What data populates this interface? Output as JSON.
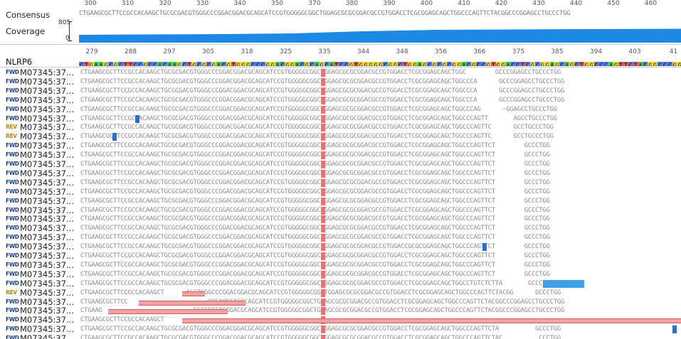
{
  "labels": {
    "consensus": "Consensus",
    "coverage": "Coverage",
    "coverage_max": "805",
    "coverage_min": "0",
    "reference": "NLRP6"
  },
  "colors": {
    "coverage": "#1e88e5",
    "A": "#4cd34c",
    "C": "#4f7de6",
    "G": "#f2d636",
    "T": "#e05a5a",
    "gap": "#f2a0a0",
    "variant": "#2a6fd6"
  },
  "ruler": [
    "300",
    "310",
    "320",
    "330",
    "340",
    "350",
    "370",
    "380",
    "390",
    "400",
    "410",
    "420",
    "430",
    "440",
    "450",
    "460",
    "470"
  ],
  "ref_ruler": [
    "279",
    "288",
    "297",
    "305",
    "318",
    "325",
    "335",
    "344",
    "348",
    "356",
    "366",
    "375",
    "385",
    "394",
    "403",
    "41"
  ],
  "consensus_seq": "CTGAAGCGCTTCCGCCACAAGCTGCGCGACGTGGGCCCGGACGGACGCAGCATCCGTGGGGGCGGCTGGAGCGCGCGGACGCCGTGGACCTCGCGGAGCAGCTGGCCCAGTTCTACGGCCCGGAGCCTGCCCTGG",
  "reference_seq": "CTGAAGCGCTTCCGCCACAAGCTGCGCGACGTGGGCCCGGACGGACGCAGCATCCGTGGGGGCGGCTGGAGCGCGCGGACGCCGTGGACCTCGCGGAGCAGCTGGCCCAGTTCTACGGCCCGGAGCCTGCCCTGG",
  "reads": [
    {
      "dir": "FWD",
      "name": "M07345:37...",
      "seq": "CTGAAGCGCTTCCGCCACAAGCTGCGCGACGTGGGCCCGGACGGACGCAGCATCCGTGGGGGCGGCTGGAGCGCGCGGACGCCGTGGACCTCGCGGAGCAGCTGGC        GCCCGGAGCCTGCCCTGG"
    },
    {
      "dir": "FWD",
      "name": "M07345:37...",
      "seq": "CTGAAGCGCTTCCGCCACAAGCTGCGCGACGTGGGCCCGGACGGACGCAGCATCCGTGGGGGCGGCTGGAGCGCGCGGACGCCGTGGACCTCGCGGAGCAGCTGGCCCA      GCCCGGAGCCTGCCCTGG"
    },
    {
      "dir": "FWD",
      "name": "M07345:37...",
      "seq": "CTGAAGCGCTTCCGCCACAAGCTGCGCGACGTGGGCCCGGACGGACGCAGCATCCGTGGGGGCGGCTGGAGCGCGCGGACGCCGTGGACCTCGCGGAGCAGCTGGCCCA      GCCCGGAGCCTGCCCTGG"
    },
    {
      "dir": "FWD",
      "name": "M07345:37...",
      "seq": "CTGAAGCGCTTCCGCCACAAGCTGCGCGACGTGGGCCCGGACGGACGCAGCATCCGTGGGGGCGGCTGGAGCGCGCGGACGCCGTGGACCTCGCGGAGCAGCTGGCCCA      GCCCGGAGCCTGCCCTGG"
    },
    {
      "dir": "FWD",
      "name": "M07345:37...",
      "seq": "CTGAAGCGCTTCCGCCACAAGCTGCGCGACGTGGGCCCGGACGGACGCAGCATCCGTGGGGGCGGCTGGAGCGCGCGGACGCCGTGGACCTCGCGGAGCAGCTGGCCCAG      ~GGAGCCTGCCCTGG"
    },
    {
      "dir": "FWD",
      "name": "M07345:37...",
      "seq": "CTGAAGCGCTTCCGCCACAAGCTGCGCGACGTGGGCCCGGACGGACGCAGCATCCGTGGGGGCGGCTGGAGCGCGCGGACGCCGTGGACCTCGCGGAGCAGCTGGCCCAGTT       AGCCTGCCCTGG"
    },
    {
      "dir": "REV",
      "name": "M07345:37...",
      "seq": "CTGAAGCGCTTCCGCCACAAGCTGCGCGACGTGGGCCCGGACGGACGCAGCATCCGTGGGGGCGGCTGGAGCGCGCGGACGCCGTGGACCTCGCGGAGCAGCTGGCCCAGTTC      GCCTGCCCTGG"
    },
    {
      "dir": "REV",
      "name": "M07345:37...",
      "seq": "CTGAAGCGCTTCCGCCACAAGCTGCGCGACGTGGGCCCGGACGGACGCAGCATCCGTGGGGGCGGCTGGAGCGCGCGGACGCCGTGGACCTCGCGGAGCAGCTGGCCCAGTTC      GCCTGCCCTGG"
    },
    {
      "dir": "FWD",
      "name": "M07345:37...",
      "seq": "CTGAAGCGCTTCCGCCACAAGCTGCGCGACGTGGGCCCGGACGGACGCAGCATCCGTGGGGGCGGCTGGAGCGCGCGGACGCCGTGGACCTCGCGGAGCAGCTGGCCCAGTTCT        GCCCTGG"
    },
    {
      "dir": "FWD",
      "name": "M07345:37...",
      "seq": "CTGAAGCGCTTCCGCCACAAGCTGCGCGACGTGGGCCCGGACGGACGCAGCATCCGTGGGGGCGGCTGGAGCGCGCGGACGCCGTGGACCTCGCGGAGCAGCTGGCCCAGTTCT        GCCCTGG"
    },
    {
      "dir": "FWD",
      "name": "M07345:37...",
      "seq": "CTGAAGCGCTTCCGCCACAAGCTGCGCGACGTGGGCCCGGACGGACGCAGCATCCGTGGGGGCGGCTGGAGCGCGCGGACGCCGTGGACCTCGCGGAGCAGCTGGCCCAGTTCT        GCCCTGG"
    },
    {
      "dir": "FWD",
      "name": "M07345:37...",
      "seq": "CTGAAGCGCTTCCGCCACAAGCTGCGCGACGTGGGCCCGGACGGACGCAGCATCCGTGGGGGCGGCTGGAGCGCGCGGACGCCGTGGACCTCGCGGAGCAGCTGGCCCAGTTCT        GCCCTGG"
    },
    {
      "dir": "FWD",
      "name": "M07345:37...",
      "seq": "CTGAAGCGCTTCCGCCACAAGCTGCGCGACGTGGGCCCGGACGGACGCAGCATCCGTGGGGGCGGCTGGAGCGCGCGGACGCCGTGGACCTCGCGGAGCAGCTGGCCCAGTTCT        GCCCTGG"
    },
    {
      "dir": "FWD",
      "name": "M07345:37...",
      "seq": "CTGAAGCGCTTCCGCCACAAGCTGCGCGACGTGGGCCCGGACGGACGCAGCATCCGTGGGGGCGGCTGGAGCGCGCGGACGCCGTGGACCTCGCGGAGCAGCTGGCCCAGTTCT        GCCCTGG"
    },
    {
      "dir": "FWD",
      "name": "M07345:37...",
      "seq": "CTGAAGCGCTTCCGCCACAAGCTGCGCGACGTGGGCCCGGACGGACGCAGCATCCGTGGGGGCGGCTGGAGCGCGCGGACGCCGTGGACCTCGCGGAGCAGCTGGCCCAGTTCT        GCCCTGG"
    },
    {
      "dir": "FWD",
      "name": "M07345:37...",
      "seq": "CTGAAGCGCTTCCGCCACAAGCTGCGCGACGTGGGCCCGGACGGACGCAGCATCCGTGGGGGCGGCTGGAGCGCGCGGACGCCGTGGACCTCGCGGAGCAGCTGGCCCAGTTCT        GCCCTGG"
    },
    {
      "dir": "FWD",
      "name": "M07345:37...",
      "seq": "CTGAAGCGCTTCCGCCACAAGCTGCGCGACGTGGGCCCGGACGGACGCAGCATCCGTGGGGGCGGCTGGAGCGCGCGGACGCCGTGGACCTCGCGGAGCAGCTGGCCCAGTTCT        GCCCTGG"
    },
    {
      "dir": "FWD",
      "name": "M07345:37...",
      "seq": "CTGAAGCGCTTCCGCCACAAGCTGCGCGACGTGGGCCCGGACGGACGCAGCATCCGTGGGGGCGGCTGGAGCGCGCGGACGCCGTGGACCTCGCGGAGCAGCTGGCCCAGTTCT        GCCCTGG"
    },
    {
      "dir": "FWD",
      "name": "M07345:37...",
      "seq": "CTGAAGCGCTTCCGCCACAAGCTGCGCGACGTGGGCCCGGACGGACGCAGCATCCGTGGGGGCGGCTGGAGCGCGCGGACGCCGTGGACCTCGCGGAGCAGCTGGCCCAGTTCT        GCCCTGG"
    },
    {
      "dir": "FWD",
      "name": "M07345:37...",
      "seq": "CTGAAGCGCTTCCGCCACAAGCTGCGCGACGTGGGCCCGGACGGACGCAGCATCCGTGGGGGCGGCTGGAGCGCGCGGACGCCGTGGACCGCGCGGAGCAGCTGGCCCAGTTCT        GCCCTGG"
    },
    {
      "dir": "FWD",
      "name": "M07345:37...",
      "seq": "CTGAAGCGCTTCCGCCACAAGCTGCGCGACGTGGGCCCGGACGGACGCAGCATCCGTGGGGGCGGCTGGAGCGCGCGGACGCCGTGGACCTCGCGGAGCAGCTGGCCCAGTTCT        GCCCTGG"
    },
    {
      "dir": "FWD",
      "name": "M07345:37...",
      "seq": "CTGAAGCGCTTCCGCCACAAGCTGCGCGACGTGGGCCCGGACGGACGCAGCATCCGTGGGGGCGGCTGGAGCGCGCGGACGCCGTGGACCTCGCGGAGCAGCTGGCCCAGTTCT        GCCCTGG"
    },
    {
      "dir": "FWD",
      "name": "M07345:37...",
      "seq": "CTGAAGCGCTTCCGCCACAAGCTGCGCGACGTGGGCCCGGACGGACGCAGCATCCGTGGGGGCGGCTGGAGCGCGCGGACGCCGTGGACCTCGCGGAGCAGCTGGCCCAGTTCT        GCCCTGG"
    },
    {
      "dir": "FWD",
      "name": "M07345:37...",
      "seq": "CTGAAGCGCTTCCGCCACAAGCTGCGCGACGTGGGCCCGGACGGACGCAGCATCCGTGGGGGCGGCTGGAGCGCGCGGACGCCGTGGACCTCGCGGAGCAGCTGGCCTGTCTCTTA       GCCCTGG"
    },
    {
      "dir": "REV",
      "name": "M07345:37...",
      "seq": "CTGAAGCGCTTCCGCCACAAGCT      ACGTGGGCCCGGACGGACGCAGCATCCGTGGGGGCGGCTGGAGCGCGCGGACGCCGTGGACCTCGCGGAGCAGCTGGCCCAGTTCTACGG      GCCCTGG"
    },
    {
      "dir": "FWD",
      "name": "M07345:37...",
      "seq": "CTGAAGCGCTTCC                      CGGACGGACGCAGCATCCGTGGGGGCGGCTGGAGCGCGCGGACGCCGTGGACCTCGCGGAGCAGCTGGCCCAGTTCTACGGCCCGGAGCCTGCCCTGG"
    },
    {
      "dir": "FWD",
      "name": "M07345:37...",
      "seq": "CTGAAG                         GGCCCGGACGGACGCAGCATCCGTGGGGGCGGCTGGAGCGCGCGGACGCCGTGGACCTCGCGGAGCAGCTGGCCCAGTTCTACGGCCCGGAGCCTGCCCTGG"
    },
    {
      "dir": "FWD",
      "name": "M07345:37...",
      "seq": "CTGAAGCGCTTCCGCCACAAGCT"
    },
    {
      "dir": "FWD",
      "name": "M07345:37...",
      "seq": "CTGAAGCGCTTCCGCCACAAGCTGCGCGACGTGGGCCCGGACGGACGCAGCATCCGTGGGGGCGGCTGGAGCGCGCGGACGCCGTGGACCTCGCGGAGCAGCTGGCCCAGTTCTA          GCCCTGG"
    },
    {
      "dir": "FWD",
      "name": "M07345:37...",
      "seq": "CTGAAGCGCTTCCGCCACAAGCTGCGCGACGTGGGCCCGGACGGACGCAGCATCCGTGGGGGCGGCTGGAGCGCGCGGACGCCGTGGACCTCGCGGAGCAGCTGGCCCAGTTCTAC          CCCTGG"
    }
  ]
}
